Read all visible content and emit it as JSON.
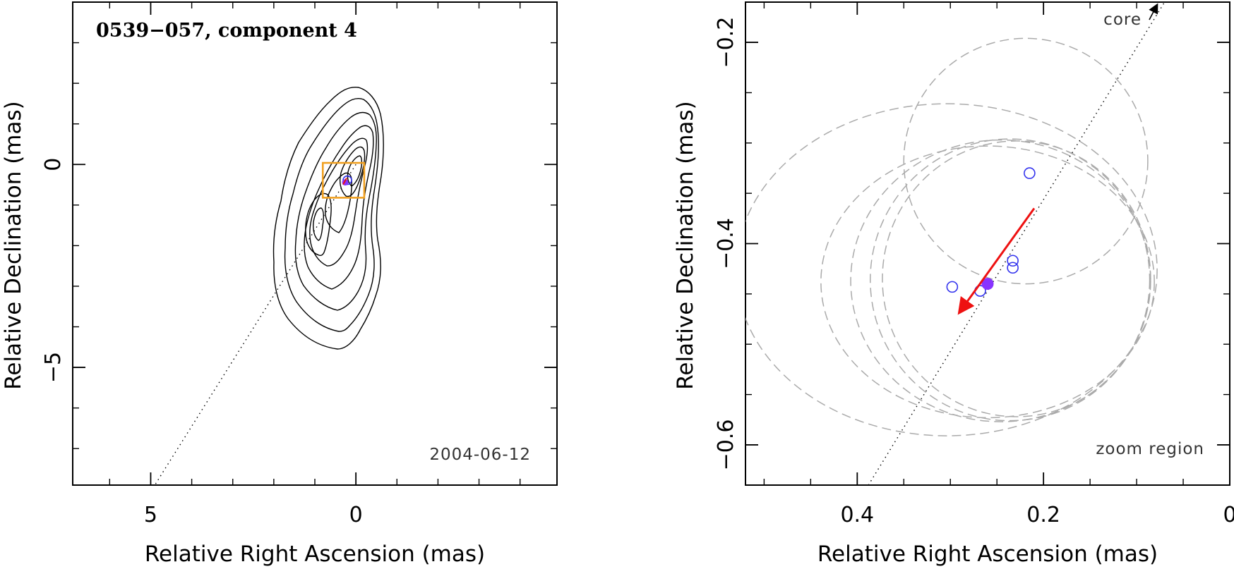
{
  "chart_data": [
    {
      "type": "contour",
      "title": "0539−057, component 4",
      "xlabel": "Relative Right Ascension (mas)",
      "ylabel": "Relative Declination (mas)",
      "xlim": [
        6.9,
        -4.9
      ],
      "ylim": [
        -7.9,
        4.0
      ],
      "x_ticks": [
        5,
        0
      ],
      "x_tick_labels": [
        "5",
        "0"
      ],
      "y_ticks": [
        -5,
        0
      ],
      "y_tick_labels": [
        "−5",
        "0"
      ],
      "date_label": "2004-06-12",
      "component_position": [
        0.26,
        -0.44
      ],
      "zoom_box": {
        "x": [
          0.6,
          -0.1
        ],
        "y": [
          -0.1,
          -0.68
        ]
      },
      "jet_axis_line": {
        "from": [
          0.0,
          0.0
        ],
        "to": [
          4.9,
          -7.9
        ]
      },
      "contours_note": "nested intensity contours around two peaks near (0.2, -0.5) and (1.2, -1.6)"
    },
    {
      "type": "scatter",
      "xlabel": "Relative Right Ascension (mas)",
      "ylabel": "Relative Declination (mas)",
      "xlim": [
        0.52,
        0.0
      ],
      "ylim": [
        -0.64,
        -0.16
      ],
      "x_ticks": [
        0.4,
        0.2,
        0
      ],
      "x_tick_labels": [
        "0.4",
        "0.2",
        "0"
      ],
      "y_ticks": [
        -0.2,
        -0.4,
        -0.6
      ],
      "y_tick_labels": [
        "−0.2",
        "−0.4",
        "−0.6"
      ],
      "core_label": "core",
      "zoom_label": "zoom region",
      "epoch_positions": [
        {
          "x": 0.215,
          "y": -0.33
        },
        {
          "x": 0.233,
          "y": -0.417
        },
        {
          "x": 0.233,
          "y": -0.424
        },
        {
          "x": 0.298,
          "y": -0.443
        },
        {
          "x": 0.268,
          "y": -0.447
        }
      ],
      "highlighted_epoch": {
        "x": 0.26,
        "y": -0.44
      },
      "motion_vector": {
        "from": [
          0.21,
          -0.365
        ],
        "to": [
          0.29,
          -0.468
        ]
      },
      "error_ellipses": [
        {
          "cx": 0.219,
          "cy": -0.318,
          "rx": 0.131,
          "ry": 0.122
        },
        {
          "cx": 0.304,
          "cy": -0.426,
          "rx": 0.226,
          "ry": 0.165
        },
        {
          "cx": 0.26,
          "cy": -0.438,
          "rx": 0.179,
          "ry": 0.135
        },
        {
          "cx": 0.246,
          "cy": -0.437,
          "rx": 0.161,
          "ry": 0.14
        },
        {
          "cx": 0.236,
          "cy": -0.436,
          "rx": 0.15,
          "ry": 0.14
        },
        {
          "cx": 0.229,
          "cy": -0.435,
          "rx": 0.144,
          "ry": 0.137
        }
      ]
    }
  ],
  "colors": {
    "axis": "#000000",
    "contour": "#000000",
    "marker": "#3333ee",
    "highlight": "#8833ff",
    "vector": "#ee1111",
    "zoom_box": "#f0a020",
    "ellipse": "#aaaaaa"
  }
}
